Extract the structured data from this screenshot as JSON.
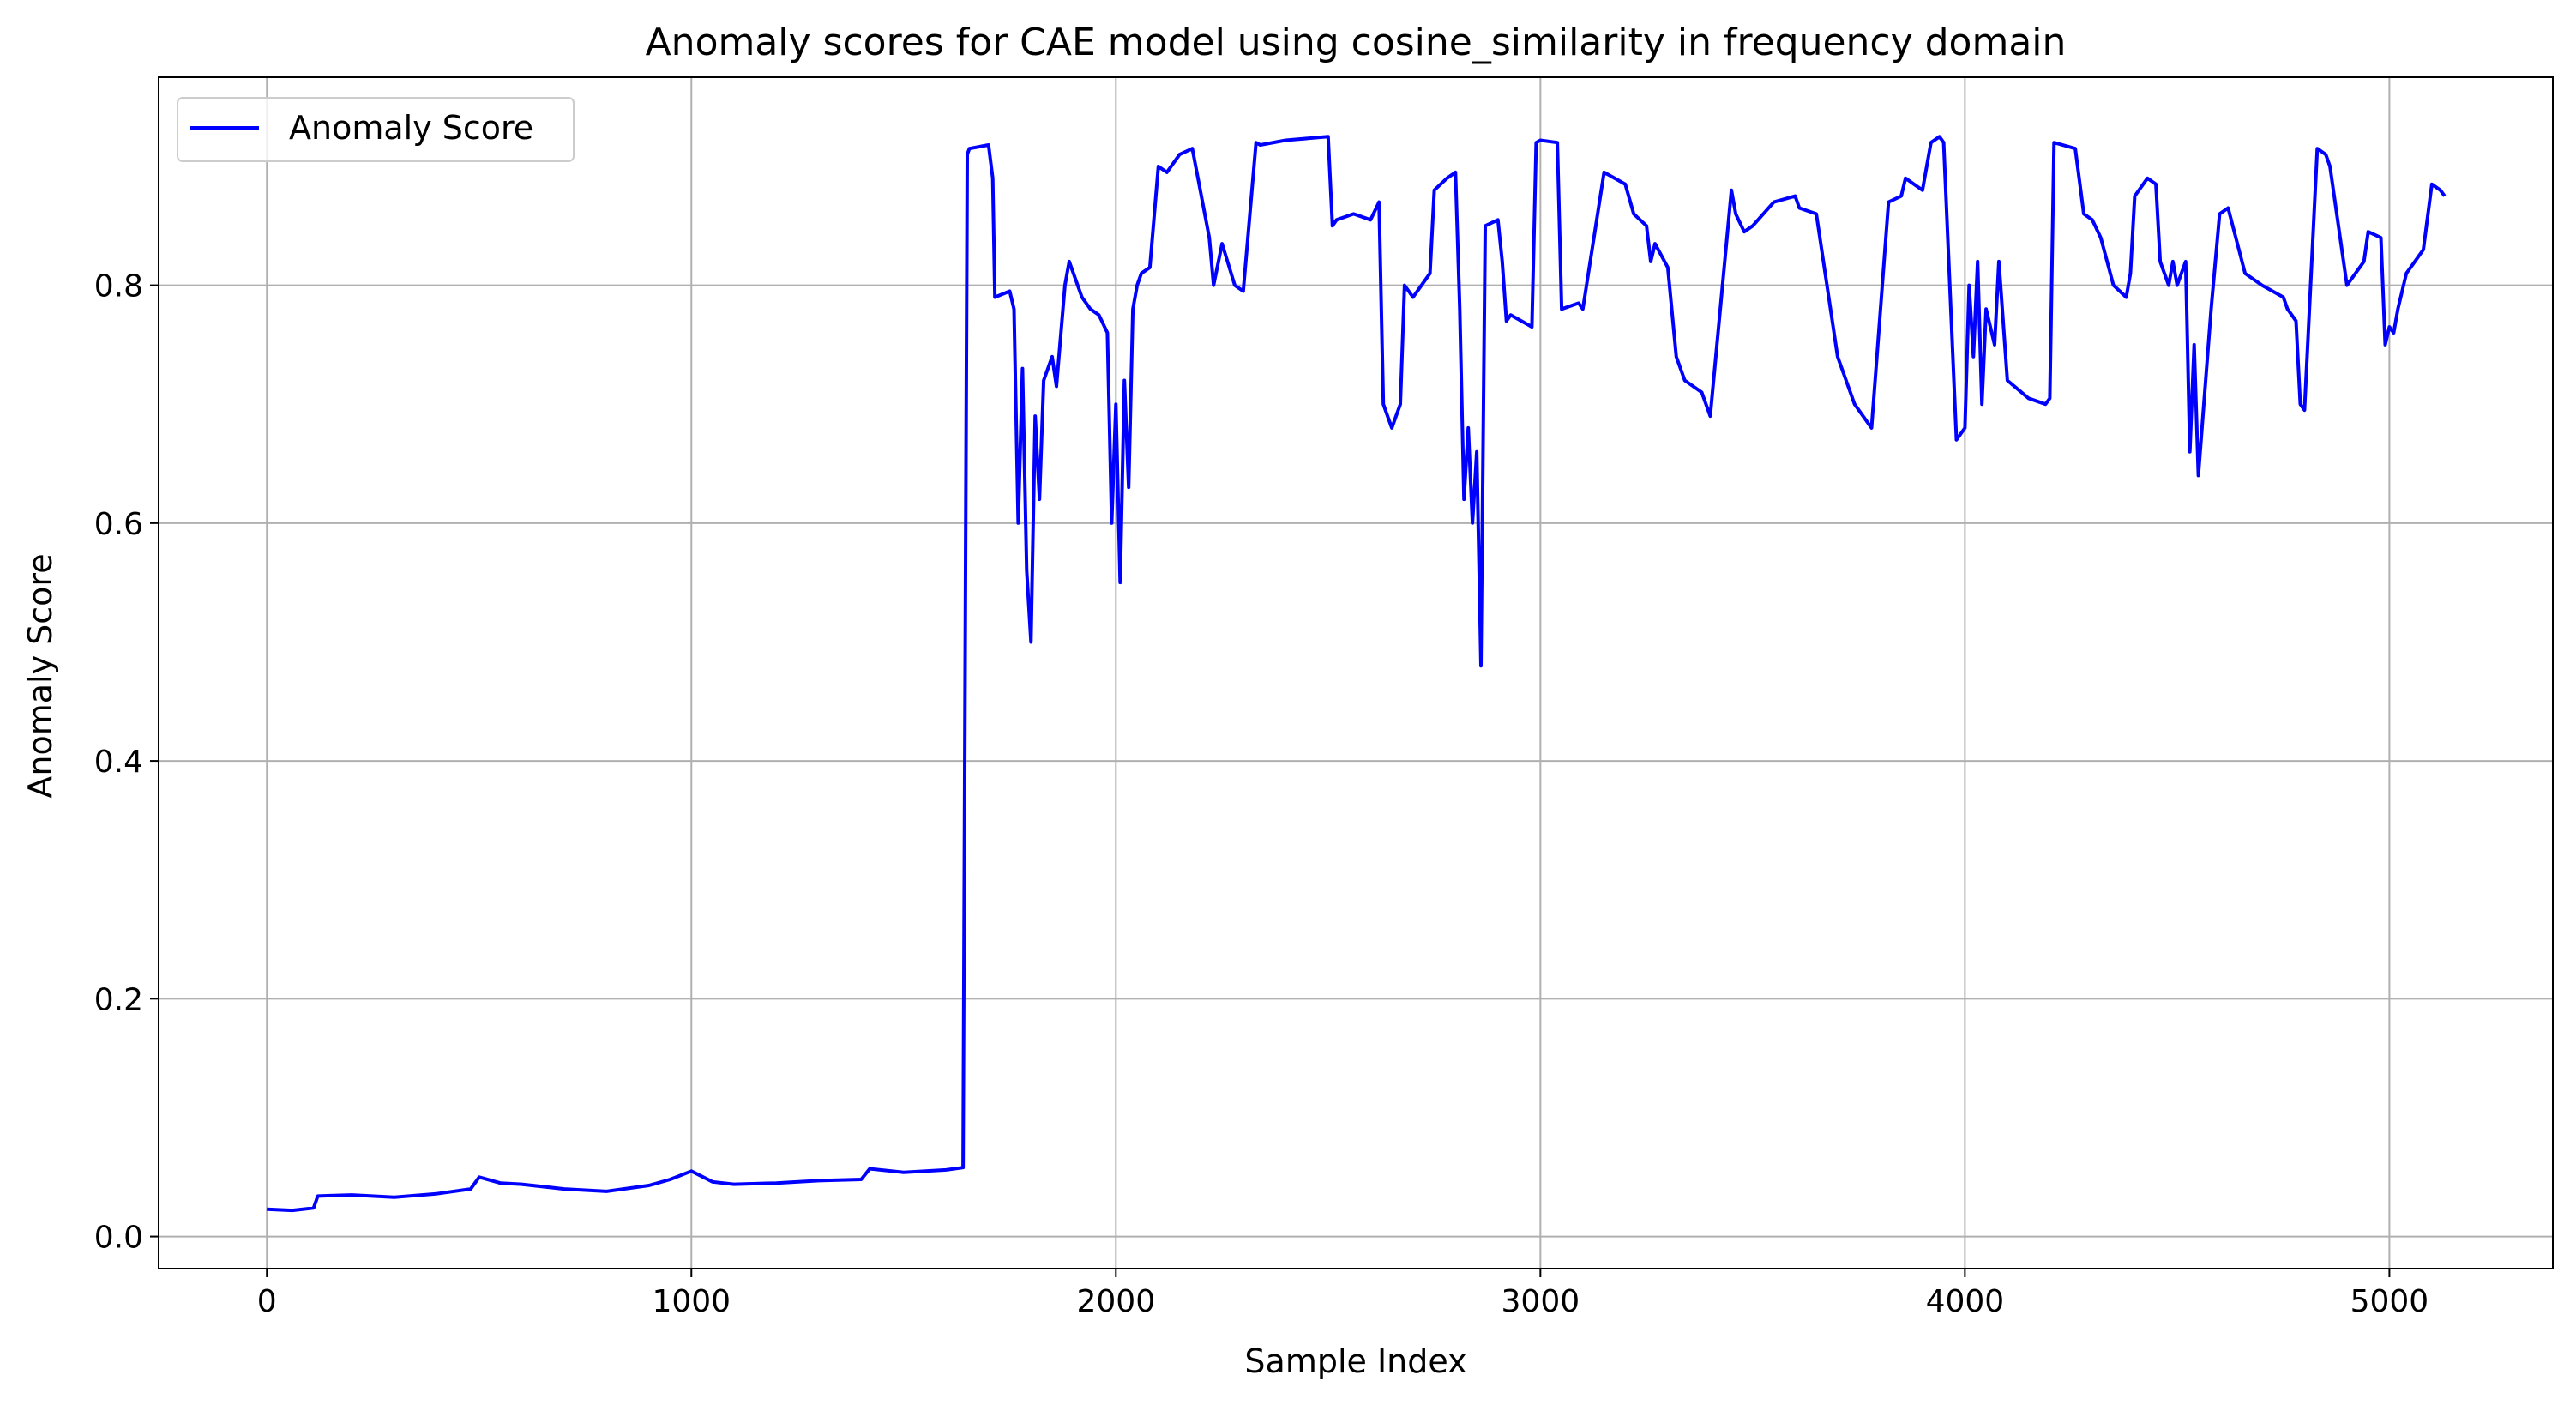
{
  "chart_data": {
    "type": "line",
    "title": "Anomaly scores for CAE model using cosine_similarity in frequency domain",
    "xlabel": "Sample Index",
    "ylabel": "Anomaly Score",
    "xlim": [
      -255,
      5385
    ],
    "ylim": [
      -0.027,
      0.975
    ],
    "xticks": [
      0,
      1000,
      2000,
      3000,
      4000,
      5000
    ],
    "xtick_labels": [
      "0",
      "1000",
      "2000",
      "3000",
      "4000",
      "5000"
    ],
    "yticks": [
      0.0,
      0.2,
      0.4,
      0.6,
      0.8
    ],
    "ytick_labels": [
      "0.0",
      "0.2",
      "0.4",
      "0.6",
      "0.8"
    ],
    "grid": true,
    "legend_position": "top-left",
    "series": [
      {
        "name": "Anomaly Score",
        "color": "#0000ff",
        "x": [
          0,
          60,
          110,
          120,
          200,
          300,
          400,
          480,
          500,
          550,
          600,
          700,
          800,
          900,
          950,
          1000,
          1050,
          1100,
          1200,
          1300,
          1400,
          1420,
          1500,
          1600,
          1640,
          1650,
          1655,
          1700,
          1710,
          1715,
          1750,
          1760,
          1770,
          1780,
          1790,
          1800,
          1810,
          1820,
          1830,
          1850,
          1860,
          1880,
          1890,
          1900,
          1920,
          1940,
          1960,
          1980,
          1990,
          2000,
          2010,
          2020,
          2030,
          2040,
          2050,
          2060,
          2080,
          2100,
          2120,
          2150,
          2180,
          2220,
          2230,
          2250,
          2280,
          2300,
          2330,
          2340,
          2400,
          2500,
          2510,
          2520,
          2560,
          2600,
          2620,
          2630,
          2640,
          2650,
          2670,
          2680,
          2700,
          2740,
          2750,
          2780,
          2800,
          2810,
          2820,
          2830,
          2840,
          2850,
          2855,
          2860,
          2870,
          2900,
          2910,
          2920,
          2930,
          2980,
          2990,
          3000,
          3040,
          3050,
          3090,
          3100,
          3150,
          3200,
          3220,
          3250,
          3260,
          3270,
          3300,
          3320,
          3340,
          3380,
          3400,
          3450,
          3460,
          3480,
          3500,
          3550,
          3600,
          3610,
          3650,
          3700,
          3720,
          3740,
          3760,
          3780,
          3820,
          3850,
          3860,
          3900,
          3910,
          3920,
          3940,
          3950,
          3980,
          3990,
          4000,
          4010,
          4020,
          4030,
          4040,
          4050,
          4070,
          4080,
          4100,
          4150,
          4190,
          4200,
          4210,
          4260,
          4280,
          4300,
          4320,
          4350,
          4380,
          4390,
          4400,
          4430,
          4450,
          4460,
          4480,
          4490,
          4500,
          4510,
          4520,
          4530,
          4540,
          4550,
          4580,
          4600,
          4620,
          4660,
          4700,
          4750,
          4760,
          4780,
          4790,
          4800,
          4830,
          4850,
          4860,
          4900,
          4940,
          4950,
          4980,
          4990,
          5000,
          5010,
          5020,
          5040,
          5060,
          5080,
          5100,
          5120,
          5130
        ],
        "values": [
          0.023,
          0.022,
          0.024,
          0.034,
          0.035,
          0.033,
          0.036,
          0.04,
          0.05,
          0.045,
          0.044,
          0.04,
          0.038,
          0.043,
          0.048,
          0.055,
          0.046,
          0.044,
          0.045,
          0.047,
          0.048,
          0.057,
          0.054,
          0.056,
          0.058,
          0.91,
          0.915,
          0.918,
          0.89,
          0.79,
          0.795,
          0.78,
          0.6,
          0.73,
          0.56,
          0.5,
          0.69,
          0.62,
          0.72,
          0.74,
          0.715,
          0.8,
          0.82,
          0.81,
          0.79,
          0.78,
          0.775,
          0.76,
          0.6,
          0.7,
          0.55,
          0.72,
          0.63,
          0.78,
          0.8,
          0.81,
          0.815,
          0.9,
          0.895,
          0.91,
          0.915,
          0.84,
          0.8,
          0.835,
          0.8,
          0.795,
          0.92,
          0.918,
          0.922,
          0.925,
          0.85,
          0.855,
          0.86,
          0.855,
          0.87,
          0.7,
          0.69,
          0.68,
          0.7,
          0.8,
          0.79,
          0.81,
          0.88,
          0.89,
          0.895,
          0.78,
          0.62,
          0.68,
          0.6,
          0.66,
          0.57,
          0.48,
          0.85,
          0.855,
          0.82,
          0.77,
          0.775,
          0.765,
          0.92,
          0.922,
          0.92,
          0.78,
          0.785,
          0.78,
          0.895,
          0.885,
          0.86,
          0.85,
          0.82,
          0.835,
          0.815,
          0.74,
          0.72,
          0.71,
          0.69,
          0.88,
          0.86,
          0.845,
          0.85,
          0.87,
          0.875,
          0.865,
          0.86,
          0.74,
          0.72,
          0.7,
          0.69,
          0.68,
          0.87,
          0.875,
          0.89,
          0.88,
          0.9,
          0.92,
          0.925,
          0.92,
          0.67,
          0.675,
          0.68,
          0.8,
          0.74,
          0.82,
          0.7,
          0.78,
          0.75,
          0.82,
          0.72,
          0.705,
          0.7,
          0.705,
          0.92,
          0.915,
          0.86,
          0.855,
          0.84,
          0.8,
          0.79,
          0.81,
          0.875,
          0.89,
          0.885,
          0.82,
          0.8,
          0.82,
          0.8,
          0.81,
          0.82,
          0.66,
          0.75,
          0.64,
          0.78,
          0.86,
          0.865,
          0.81,
          0.8,
          0.79,
          0.78,
          0.77,
          0.7,
          0.695,
          0.915,
          0.91,
          0.9,
          0.8,
          0.82,
          0.845,
          0.84,
          0.75,
          0.765,
          0.76,
          0.78,
          0.81,
          0.82,
          0.83,
          0.885,
          0.88,
          0.875
        ]
      }
    ]
  }
}
